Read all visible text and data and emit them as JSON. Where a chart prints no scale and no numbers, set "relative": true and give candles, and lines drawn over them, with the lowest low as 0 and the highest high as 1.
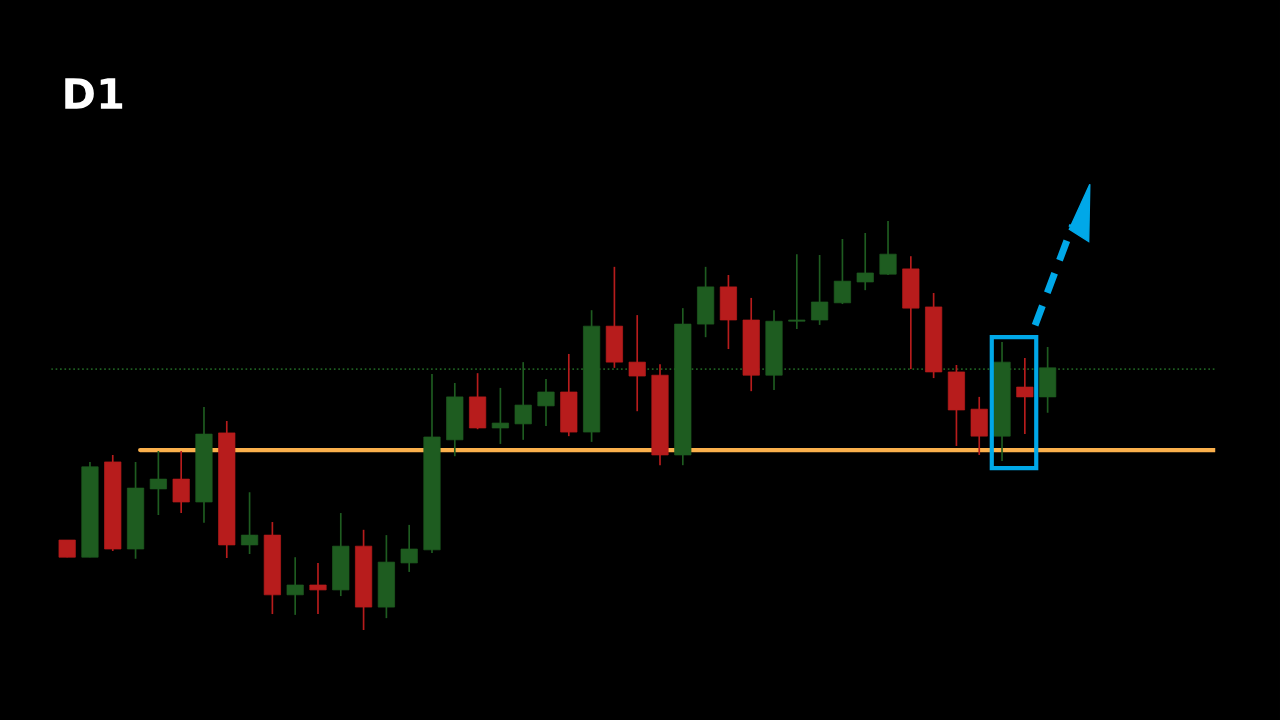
{
  "chart_data": {
    "type": "candlestick",
    "title": "D1",
    "relative": true,
    "categories": [
      null,
      null,
      null,
      null,
      null,
      null,
      null,
      null,
      null,
      null,
      null,
      null,
      null,
      null,
      null,
      null,
      null,
      null,
      null,
      null,
      null,
      null,
      null,
      null,
      null,
      null,
      null,
      null,
      null,
      null,
      null,
      null,
      null,
      null,
      null,
      null,
      null,
      null,
      null,
      null,
      null,
      null,
      null,
      null
    ],
    "ohlc": [
      [
        0.22,
        0.22,
        0.178,
        0.178
      ],
      [
        0.178,
        0.411,
        0.178,
        0.399
      ],
      [
        0.411,
        0.428,
        0.193,
        0.198
      ],
      [
        0.198,
        0.411,
        0.174,
        0.347
      ],
      [
        0.345,
        0.438,
        0.281,
        0.369
      ],
      [
        0.369,
        0.438,
        0.286,
        0.313
      ],
      [
        0.313,
        0.545,
        0.262,
        0.479
      ],
      [
        0.482,
        0.511,
        0.176,
        0.208
      ],
      [
        0.208,
        0.337,
        0.186,
        0.232
      ],
      [
        0.232,
        0.264,
        0.039,
        0.086
      ],
      [
        0.086,
        0.178,
        0.037,
        0.11
      ],
      [
        0.11,
        0.164,
        0.039,
        0.098
      ],
      [
        0.098,
        0.286,
        0.083,
        0.205
      ],
      [
        0.205,
        0.245,
        0.0,
        0.056
      ],
      [
        0.056,
        0.232,
        0.029,
        0.166
      ],
      [
        0.164,
        0.257,
        0.142,
        0.198
      ],
      [
        0.196,
        0.626,
        0.188,
        0.472
      ],
      [
        0.465,
        0.604,
        0.425,
        0.57
      ],
      [
        0.57,
        0.628,
        0.491,
        0.494
      ],
      [
        0.494,
        0.592,
        0.455,
        0.506
      ],
      [
        0.504,
        0.655,
        0.465,
        0.55
      ],
      [
        0.548,
        0.614,
        0.499,
        0.582
      ],
      [
        0.582,
        0.675,
        0.474,
        0.484
      ],
      [
        0.484,
        0.782,
        0.46,
        0.743
      ],
      [
        0.743,
        0.888,
        0.641,
        0.655
      ],
      [
        0.655,
        0.77,
        0.535,
        0.621
      ],
      [
        0.623,
        0.65,
        0.403,
        0.428
      ],
      [
        0.428,
        0.787,
        0.403,
        0.748
      ],
      [
        0.748,
        0.888,
        0.716,
        0.839
      ],
      [
        0.839,
        0.868,
        0.687,
        0.758
      ],
      [
        0.758,
        0.812,
        0.584,
        0.623
      ],
      [
        0.623,
        0.782,
        0.587,
        0.755
      ],
      [
        0.755,
        0.919,
        0.736,
        0.758
      ],
      [
        0.758,
        0.917,
        0.746,
        0.802
      ],
      [
        0.8,
        0.956,
        0.797,
        0.853
      ],
      [
        0.851,
        0.971,
        0.831,
        0.873
      ],
      [
        0.87,
        1.0,
        0.868,
        0.919
      ],
      [
        0.883,
        0.914,
        0.638,
        0.787
      ],
      [
        0.79,
        0.824,
        0.616,
        0.631
      ],
      [
        0.631,
        0.648,
        0.45,
        0.538
      ],
      [
        0.54,
        0.57,
        0.428,
        0.474
      ],
      [
        0.474,
        0.704,
        0.413,
        0.655
      ],
      [
        0.594,
        0.665,
        0.479,
        0.57
      ],
      [
        0.57,
        0.692,
        0.531,
        0.641
      ]
    ],
    "colors": [
      "#b71c1c",
      "#1e5c20",
      "#b71c1c",
      "#1e5c20",
      "#1e5c20",
      "#b71c1c",
      "#1e5c20",
      "#b71c1c",
      "#1e5c20",
      "#b71c1c",
      "#1e5c20",
      "#b71c1c",
      "#1e5c20",
      "#b71c1c",
      "#1e5c20",
      "#1e5c20",
      "#1e5c20",
      "#1e5c20",
      "#b71c1c",
      "#1e5c20",
      "#1e5c20",
      "#1e5c20",
      "#b71c1c",
      "#1e5c20",
      "#b71c1c",
      "#b71c1c",
      "#b71c1c",
      "#1e5c20",
      "#1e5c20",
      "#b71c1c",
      "#b71c1c",
      "#1e5c20",
      "#1e5c20",
      "#1e5c20",
      "#1e5c20",
      "#1e5c20",
      "#1e5c20",
      "#b71c1c",
      "#b71c1c",
      "#b71c1c",
      "#b71c1c",
      "#1e5c20",
      "#b71c1c",
      "#1e5c20"
    ],
    "ref_lines": [
      {
        "axis": "y",
        "value": 0.44,
        "color": "#fbb04c",
        "line_style": "solid"
      },
      {
        "axis": "y",
        "value": 0.638,
        "color": "#1e5c20",
        "line_style": "dotted"
      }
    ],
    "grid": false,
    "legend": false
  }
}
